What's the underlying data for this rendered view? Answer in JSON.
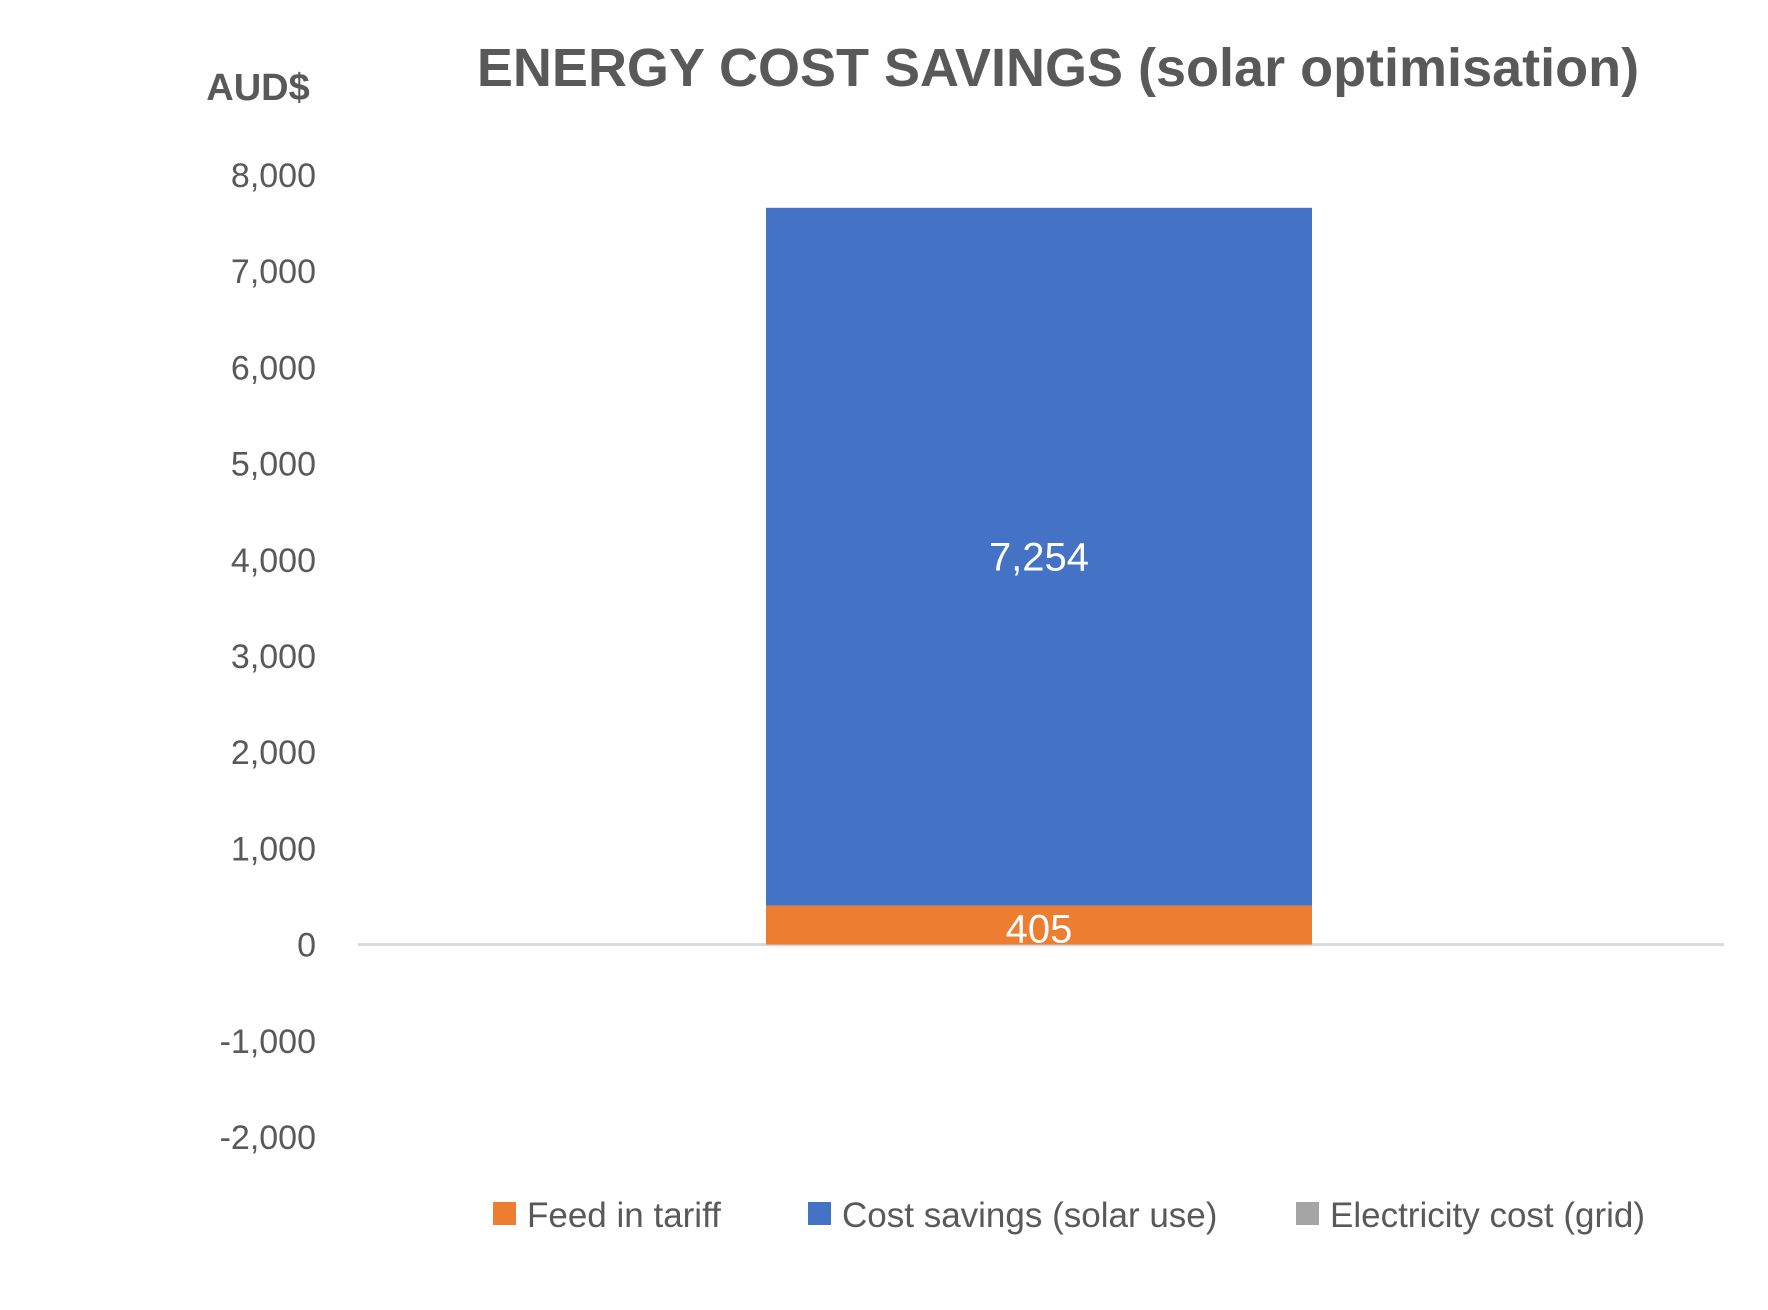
{
  "chart_data": {
    "type": "bar",
    "stacked": true,
    "title": "ENERGY COST SAVINGS (solar optimisation)",
    "ylabel": "AUD$",
    "xlabel": "",
    "ylim": [
      -2000,
      8000
    ],
    "yticks": [
      8000,
      7000,
      6000,
      5000,
      4000,
      3000,
      2000,
      1000,
      0,
      -1000,
      -2000
    ],
    "ytick_labels": [
      "8,000",
      "7,000",
      "6,000",
      "5,000",
      "4,000",
      "3,000",
      "2,000",
      "1,000",
      "0",
      "-1,000",
      "-2,000"
    ],
    "categories": [
      ""
    ],
    "grid": false,
    "legend_position": "bottom",
    "series": [
      {
        "name": "Feed in tariff",
        "values": [
          405
        ],
        "color": "#ED7D31",
        "label": "405"
      },
      {
        "name": "Cost savings (solar use)",
        "values": [
          7254
        ],
        "color": "#4472C4",
        "label": "7,254"
      },
      {
        "name": "Electricity cost (grid)",
        "values": [
          0
        ],
        "color": "#A5A5A5",
        "label": ""
      }
    ]
  }
}
